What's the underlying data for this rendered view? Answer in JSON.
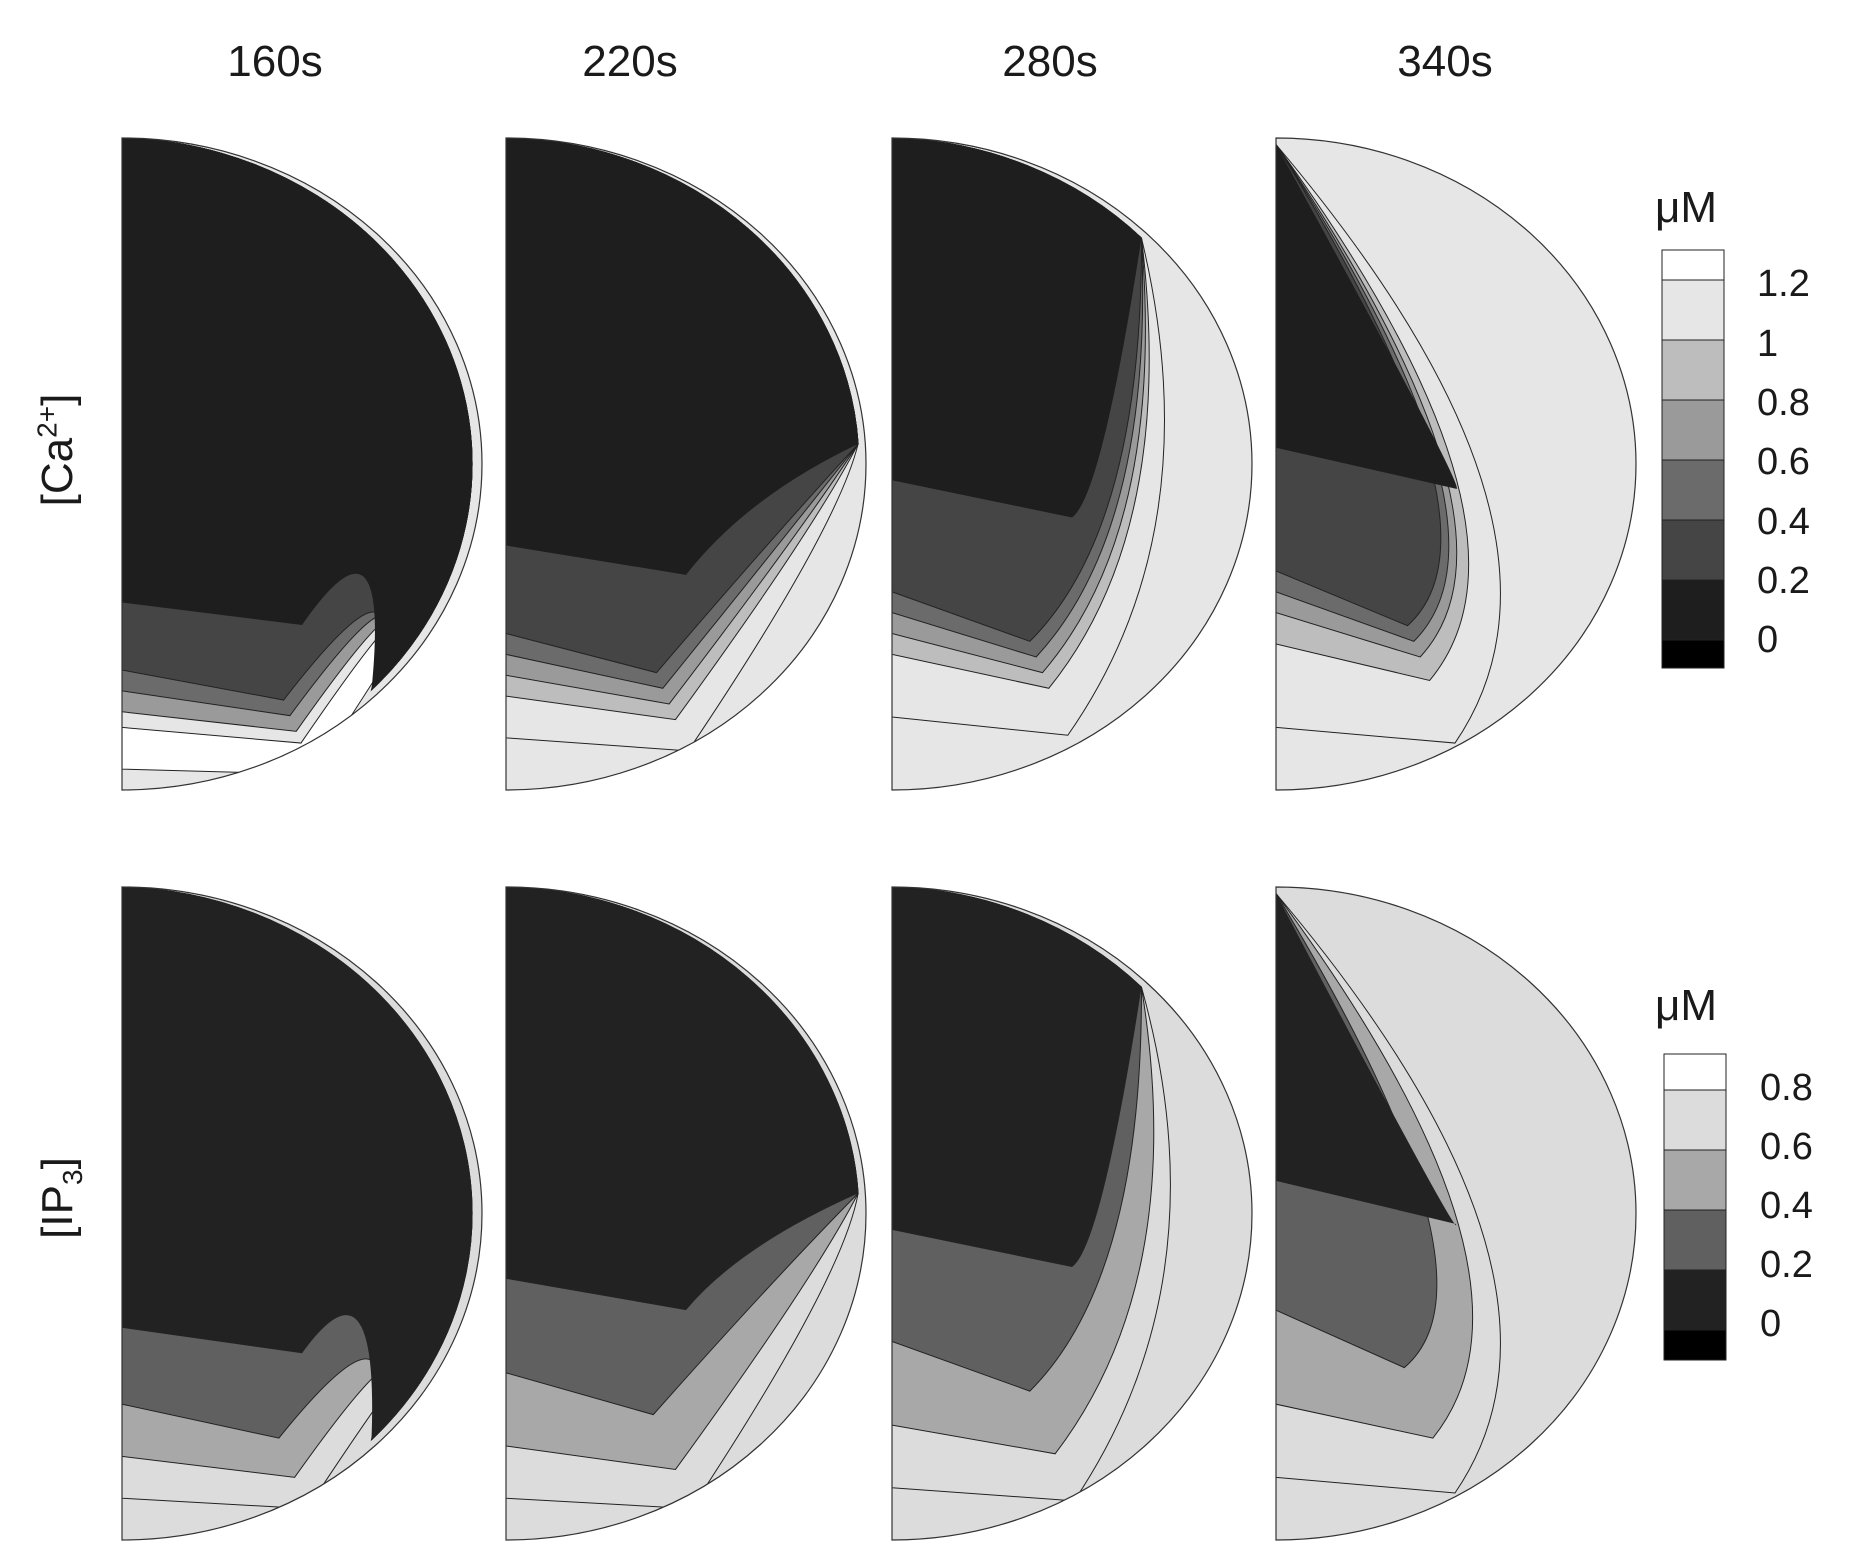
{
  "columns": [
    "160s",
    "220s",
    "280s",
    "340s"
  ],
  "rows": [
    {
      "species": "Ca",
      "sup": "2+",
      "sub": ""
    },
    {
      "species": "IP",
      "sup": "",
      "sub": "3"
    }
  ],
  "colorbars": [
    {
      "unit": "μM",
      "ticks": [
        "1.2",
        "1",
        "0.8",
        "0.6",
        "0.4",
        "0.2",
        "0"
      ],
      "colors": [
        "#ffffff",
        "#e6e6e6",
        "#bdbdbd",
        "#9a9a9a",
        "#6b6b6b",
        "#454545",
        "#1e1e1e",
        "#000000"
      ]
    },
    {
      "unit": "μM",
      "ticks": [
        "0.8",
        "0.6",
        "0.4",
        "0.2",
        "0"
      ],
      "colors": [
        "#ffffff",
        "#dcdcdc",
        "#a8a8a8",
        "#606060",
        "#222222",
        "#000000"
      ]
    }
  ]
}
